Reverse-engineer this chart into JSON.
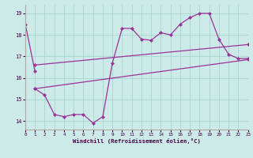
{
  "xlabel": "Windchill (Refroidissement éolien,°C)",
  "bg_color": "#cceae7",
  "grid_color": "#aad4d0",
  "line_color": "#993399",
  "xlim": [
    0,
    23
  ],
  "ylim": [
    13.6,
    19.4
  ],
  "yticks": [
    14,
    15,
    16,
    17,
    18,
    19
  ],
  "xticks": [
    0,
    1,
    2,
    3,
    4,
    5,
    6,
    7,
    8,
    9,
    10,
    11,
    12,
    13,
    14,
    15,
    16,
    17,
    18,
    19,
    20,
    21,
    22,
    23
  ],
  "line1_x": [
    0,
    1
  ],
  "line1_y": [
    18.5,
    16.3
  ],
  "line2_x": [
    1,
    2,
    3,
    4,
    5,
    6,
    7,
    8,
    9,
    10,
    11,
    12,
    13,
    14,
    15,
    16,
    17,
    18,
    19,
    20,
    21,
    22,
    23
  ],
  "line2_y": [
    15.5,
    15.2,
    14.3,
    14.2,
    14.3,
    14.3,
    13.9,
    14.2,
    16.7,
    18.3,
    18.3,
    17.8,
    17.75,
    18.1,
    18.0,
    18.5,
    18.8,
    19.0,
    19.0,
    17.8,
    17.1,
    16.9,
    16.9
  ],
  "line3_x": [
    1,
    23
  ],
  "line3_y": [
    16.6,
    17.55
  ],
  "line4_x": [
    1,
    23
  ],
  "line4_y": [
    15.5,
    16.85
  ]
}
